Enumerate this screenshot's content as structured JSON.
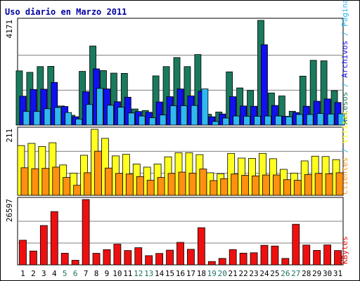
{
  "title": "Uso diario en Marzo 2011",
  "colors": {
    "title": "#0000a0",
    "accesos": "#1a7a5e",
    "paginas": "#1010f0",
    "archivos": "#30b8f0",
    "visitas": "#ffff20",
    "clientes": "#ff9010",
    "kbytes": "#ee1010",
    "weekday": "#000000",
    "weekend": "#207060",
    "gridline": "#808080"
  },
  "chart_data": {
    "type": "bar",
    "categories": [
      "1",
      "2",
      "3",
      "4",
      "5",
      "6",
      "7",
      "8",
      "9",
      "10",
      "11",
      "12",
      "13",
      "14",
      "15",
      "16",
      "17",
      "18",
      "19",
      "20",
      "21",
      "22",
      "23",
      "24",
      "25",
      "26",
      "27",
      "28",
      "29",
      "30",
      "31"
    ],
    "weekend_days": [
      "5",
      "6",
      "12",
      "13",
      "19",
      "20",
      "26",
      "27"
    ],
    "panels": [
      {
        "id": "top",
        "max_label": "4171",
        "ymax": 4171,
        "legend": [
          {
            "text": "Accesos",
            "color_key": "accesos"
          },
          {
            "text": " / ",
            "color_key": "archivos"
          },
          {
            "text": "Archivos",
            "color_key": "paginas"
          },
          {
            "text": " / ",
            "color_key": "archivos"
          },
          {
            "text": "Páginas",
            "color_key": "archivos"
          }
        ],
        "series": [
          {
            "name": "Accesos",
            "color_key": "accesos",
            "values": [
              2160,
              2100,
              2330,
              2340,
              760,
              390,
              2140,
              3150,
              2170,
              2070,
              2060,
              640,
              580,
              1960,
              2330,
              2690,
              2330,
              2810,
              430,
              520,
              2120,
              1480,
              1380,
              4171,
              1280,
              1160,
              550,
              1950,
              2580,
              2560,
              1370
            ]
          },
          {
            "name": "Archivos",
            "color_key": "paginas",
            "values": [
              1150,
              1420,
              1430,
              1700,
              740,
              330,
              1330,
              2240,
              1440,
              930,
              1110,
              540,
              510,
              920,
              1130,
              1440,
              1160,
              1350,
              330,
              440,
              1130,
              760,
              750,
              3200,
              780,
              350,
              500,
              750,
              950,
              1040,
              900
            ]
          },
          {
            "name": "Páginas",
            "color_key": "archivos",
            "values": [
              540,
              540,
              650,
              700,
              500,
              240,
              820,
              1460,
              790,
              710,
              480,
              360,
              290,
              400,
              770,
              770,
              780,
              1440,
              140,
              280,
              360,
              350,
              350,
              360,
              360,
              330,
              420,
              420,
              460,
              440,
              450
            ]
          }
        ]
      },
      {
        "id": "middle",
        "max_label": "211",
        "ymax": 211,
        "legend": [
          {
            "text": "Clientes",
            "color_key": "clientes"
          },
          {
            "text": " / ",
            "color_key": "archivos"
          },
          {
            "text": "Visitas",
            "color_key": "visitas"
          }
        ],
        "series": [
          {
            "name": "Visitas",
            "color_key": "visitas",
            "values": [
              159,
              166,
              156,
              168,
              97,
              71,
              128,
              211,
              182,
              126,
              131,
              100,
              90,
              100,
              123,
              136,
              136,
              130,
              72,
              69,
              134,
              119,
              118,
              134,
              117,
              83,
              71,
              110,
              125,
              124,
              114
            ]
          },
          {
            "name": "Clientes",
            "color_key": "clientes",
            "values": [
              88,
              85,
              86,
              90,
              57,
              32,
              72,
              141,
              87,
              70,
              68,
              60,
              48,
              57,
              70,
              74,
              71,
              84,
              47,
              53,
              68,
              64,
              62,
              65,
              65,
              50,
              48,
              66,
              70,
              69,
              72
            ]
          }
        ]
      },
      {
        "id": "bottom",
        "max_label": "26597",
        "ymax": 26597,
        "legend": [
          {
            "text": "KBytes",
            "color_key": "kbytes"
          }
        ],
        "series": [
          {
            "name": "KBytes",
            "color_key": "kbytes",
            "values": [
              10030,
              5640,
              16010,
              21680,
              4740,
              1880,
              26597,
              4710,
              6190,
              8420,
              5830,
              6990,
              3750,
              4650,
              5990,
              9150,
              6330,
              15130,
              1370,
              2630,
              6230,
              4770,
              4930,
              7960,
              7650,
              2620,
              16530,
              8060,
              5890,
              8110,
              5830
            ]
          }
        ]
      }
    ]
  }
}
